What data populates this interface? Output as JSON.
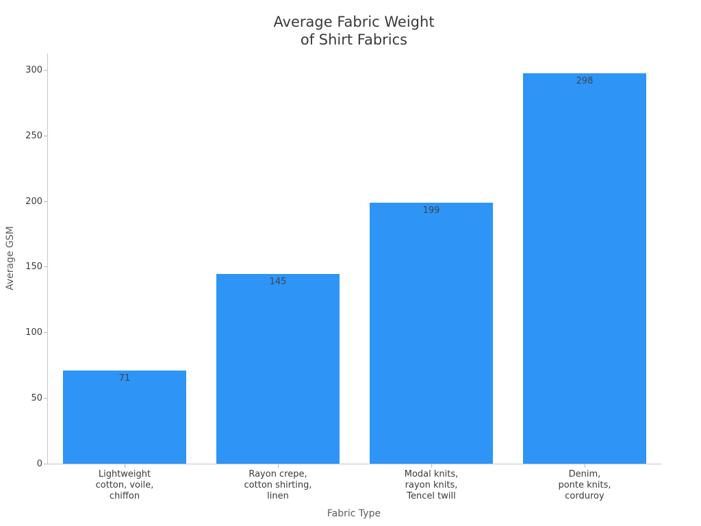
{
  "chart_data": {
    "type": "bar",
    "title": "Average Fabric Weight\nof Shirt Fabrics",
    "title_lines": [
      "Average Fabric Weight",
      "of Shirt Fabrics"
    ],
    "xlabel": "Fabric Type",
    "ylabel": "Average GSM",
    "categories": [
      "Lightweight cotton, voile, chiffon",
      "Rayon crepe, cotton shirting, linen",
      "Modal knits, rayon knits, Tencel twill",
      "Denim, ponte knits, corduroy"
    ],
    "category_lines": [
      [
        "Lightweight",
        "cotton, voile,",
        "chiffon"
      ],
      [
        "Rayon crepe,",
        "cotton shirting,",
        "linen"
      ],
      [
        "Modal knits,",
        "rayon knits,",
        "Tencel twill"
      ],
      [
        "Denim,",
        "ponte knits,",
        "corduroy"
      ]
    ],
    "values": [
      71,
      145,
      199,
      298
    ],
    "value_labels": [
      "71",
      "145",
      "199",
      "298"
    ],
    "yticks": [
      0,
      50,
      100,
      150,
      200,
      250,
      300
    ],
    "ylim": [
      0,
      313
    ],
    "grid": false,
    "legend_position": "none",
    "bar_width_fraction": 0.8
  },
  "colors": {
    "bar": "#2e94f5",
    "title_text": "#3a3a3a",
    "tick_text": "#3a3a3a",
    "axis_label_text": "#5c5c5c",
    "value_label_text": "#3b4754",
    "spine": "#c6c6c6",
    "background": "#ffffff"
  }
}
